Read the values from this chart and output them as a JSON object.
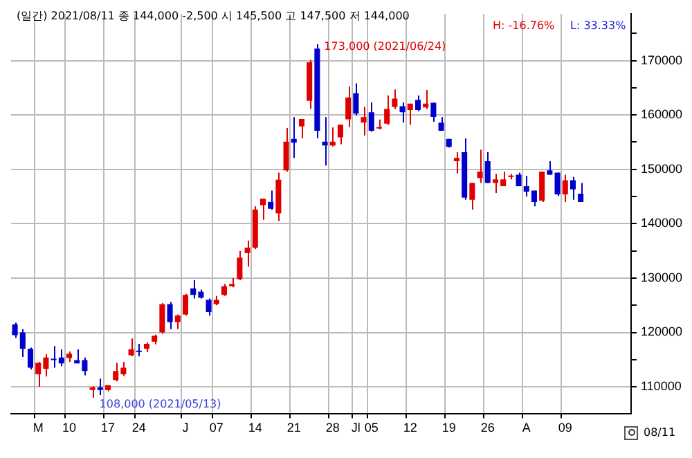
{
  "chart_data": {
    "type": "candlestick",
    "title": "(일간) 2021/08/11  종 144,000 -2,500  시 145,500 고 147,500 저 144,000",
    "categories": [
      null,
      null,
      null,
      "M",
      null,
      null,
      null,
      "10",
      null,
      null,
      null,
      null,
      "17",
      null,
      null,
      null,
      "24",
      null,
      null,
      null,
      null,
      null,
      "J",
      null,
      null,
      null,
      "07",
      null,
      null,
      null,
      null,
      "14",
      null,
      null,
      null,
      null,
      "21",
      null,
      null,
      null,
      null,
      "28",
      null,
      null,
      "Jl",
      null,
      "05",
      null,
      null,
      null,
      null,
      "12",
      null,
      null,
      null,
      null,
      "19",
      null,
      null,
      null,
      null,
      "26",
      null,
      null,
      null,
      null,
      "A",
      null,
      null,
      null,
      null,
      "09",
      null,
      null,
      null,
      null,
      null,
      null,
      null,
      null
    ],
    "ohlc": [
      [
        121500,
        121800,
        119000,
        119500
      ],
      [
        120000,
        120600,
        115500,
        117000
      ],
      [
        117000,
        117200,
        113200,
        113500
      ],
      [
        112300,
        114600,
        110000,
        114400
      ],
      [
        113300,
        116000,
        111900,
        115400
      ],
      [
        115000,
        117500,
        113500,
        114900
      ],
      [
        115400,
        116900,
        113800,
        114300
      ],
      [
        115300,
        116500,
        114600,
        116100
      ],
      [
        114900,
        116900,
        114300,
        114300
      ],
      [
        114900,
        115400,
        112100,
        112900
      ],
      [
        109400,
        110100,
        108000,
        109900
      ],
      [
        109900,
        111500,
        108500,
        109400
      ],
      [
        109400,
        110300,
        109200,
        110300
      ],
      [
        111250,
        114400,
        111000,
        112900
      ],
      [
        112300,
        114600,
        112000,
        113500
      ],
      [
        115800,
        118900,
        115600,
        116900
      ],
      [
        116500,
        117900,
        115600,
        116400
      ],
      [
        117000,
        118200,
        116400,
        117900
      ],
      [
        118300,
        119600,
        117800,
        119400
      ],
      [
        120000,
        125400,
        119750,
        125200
      ],
      [
        125200,
        125600,
        120600,
        121900
      ],
      [
        121900,
        123300,
        120600,
        123100
      ],
      [
        123300,
        127100,
        123100,
        126900
      ],
      [
        128100,
        129600,
        126250,
        126900
      ],
      [
        127500,
        127900,
        126250,
        126400
      ],
      [
        126000,
        126250,
        123100,
        123750
      ],
      [
        125200,
        126700,
        125000,
        126000
      ],
      [
        126900,
        128900,
        126700,
        128500
      ],
      [
        128500,
        130000,
        128300,
        128900
      ],
      [
        129800,
        135000,
        129600,
        133750
      ],
      [
        134600,
        136900,
        132100,
        135600
      ],
      [
        135600,
        143200,
        135300,
        142600
      ],
      [
        143400,
        144600,
        140700,
        144600
      ],
      [
        144000,
        146100,
        142600,
        142750
      ],
      [
        141900,
        149400,
        140500,
        148100
      ],
      [
        149800,
        157600,
        149600,
        155100
      ],
      [
        155600,
        159600,
        152100,
        154900
      ],
      [
        157900,
        159250,
        155700,
        159250
      ],
      [
        162600,
        170100,
        161100,
        169700
      ],
      [
        172200,
        173000,
        155700,
        157100
      ],
      [
        155100,
        159600,
        150700,
        154400
      ],
      [
        154400,
        157700,
        154200,
        155100
      ],
      [
        155900,
        158200,
        154600,
        158200
      ],
      [
        159200,
        165250,
        157750,
        163200
      ],
      [
        164000,
        165800,
        159850,
        160250
      ],
      [
        158600,
        161500,
        156250,
        159600
      ],
      [
        160500,
        162300,
        156900,
        157100
      ],
      [
        157500,
        159150,
        157350,
        157700
      ],
      [
        158400,
        163600,
        158200,
        161100
      ],
      [
        161500,
        164700,
        161100,
        163000
      ],
      [
        161600,
        162300,
        158600,
        160500
      ],
      [
        160900,
        162100,
        158200,
        162100
      ],
      [
        162750,
        163600,
        160700,
        160900
      ],
      [
        161400,
        164600,
        161100,
        162100
      ],
      [
        162250,
        162250,
        158750,
        159650
      ],
      [
        158600,
        159600,
        157100,
        157100
      ],
      [
        155600,
        155600,
        154000,
        154150
      ],
      [
        151500,
        153150,
        149250,
        152100
      ],
      [
        153150,
        155700,
        144400,
        144800
      ],
      [
        144400,
        147500,
        142600,
        147500
      ],
      [
        148400,
        153600,
        147500,
        149600
      ],
      [
        151500,
        153150,
        147500,
        147500
      ],
      [
        147500,
        149150,
        145650,
        148150
      ],
      [
        146900,
        149600,
        146900,
        148150
      ],
      [
        148600,
        149150,
        148150,
        148800
      ],
      [
        149000,
        149400,
        146900,
        146900
      ],
      [
        146900,
        148800,
        145000,
        145900
      ],
      [
        146100,
        146100,
        143200,
        144000
      ],
      [
        144250,
        149600,
        144000,
        149600
      ],
      [
        149800,
        151500,
        149000,
        149000
      ],
      [
        149400,
        149400,
        145100,
        145400
      ],
      [
        145400,
        149000,
        144000,
        148000
      ],
      [
        148000,
        148600,
        144400,
        146300
      ],
      [
        145500,
        147500,
        144000,
        144000
      ],
      null,
      null,
      null,
      null,
      null,
      null
    ],
    "colors": [
      "#0000cc",
      "#0000cc",
      "#0000cc",
      "#e00000",
      "#e00000",
      "#0000cc",
      "#0000cc",
      "#e00000",
      "#0000cc",
      "#0000cc",
      "#e00000",
      "#0000cc",
      "#e00000",
      "#e00000",
      "#e00000",
      "#e00000",
      "#0000cc",
      "#e00000",
      "#e00000",
      "#e00000",
      "#0000cc",
      "#e00000",
      "#e00000",
      "#0000cc",
      "#0000cc",
      "#0000cc",
      "#e00000",
      "#e00000",
      "#e00000",
      "#e00000",
      "#e00000",
      "#e00000",
      "#e00000",
      "#0000cc",
      "#e00000",
      "#e00000",
      "#0000cc",
      "#e00000",
      "#e00000",
      "#0000cc",
      "#0000cc",
      "#e00000",
      "#e00000",
      "#e00000",
      "#0000cc",
      "#e00000",
      "#0000cc",
      "#e00000",
      "#e00000",
      "#e00000",
      "#0000cc",
      "#e00000",
      "#0000cc",
      "#e00000",
      "#0000cc",
      "#0000cc",
      "#0000cc",
      "#e00000",
      "#0000cc",
      "#e00000",
      "#e00000",
      "#0000cc",
      "#e00000",
      "#e00000",
      "#e00000",
      "#0000cc",
      "#0000cc",
      "#0000cc",
      "#e00000",
      "#0000cc",
      "#0000cc",
      "#e00000",
      "#0000cc",
      "#0000cc",
      null,
      null,
      null,
      null,
      null,
      null
    ],
    "ylim": [
      105000,
      178600
    ],
    "yticks": [
      110000,
      {
        "value": 115000,
        "label": null
      },
      120000,
      {
        "value": 125000,
        "label": null
      },
      130000,
      {
        "value": 135000,
        "label": null
      },
      140000,
      {
        "value": 145000,
        "label": null
      },
      150000,
      {
        "value": 155000,
        "label": null
      },
      160000,
      {
        "value": 165000,
        "label": null
      },
      170000,
      {
        "value": 175000,
        "label": null
      }
    ],
    "grid": true,
    "annotations": [
      "173,000 (2021/06/24)",
      "108,000 (2021/05/13)",
      "H: -16.76%",
      "L: 33.33%",
      "08/11"
    ]
  }
}
